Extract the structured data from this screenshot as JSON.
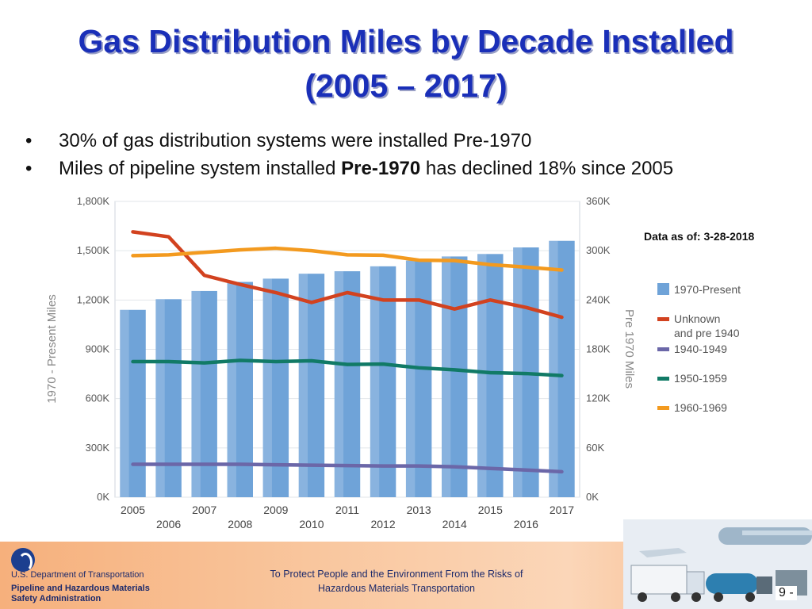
{
  "slide": {
    "title_line1": "Gas Distribution Miles by Decade Installed",
    "title_line2": "(2005 – 2017)",
    "bullets": [
      {
        "text": "30% of gas distribution systems were installed Pre-1970"
      },
      {
        "pre": "Miles of pipeline system installed ",
        "bold": "Pre-1970",
        "post": " has declined 18% since 2005"
      }
    ],
    "data_as_of": "Data as of: 3-28-2018"
  },
  "chart_data": {
    "type": "bar",
    "x": [
      "2005",
      "2006",
      "2007",
      "2008",
      "2009",
      "2010",
      "2011",
      "2012",
      "2013",
      "2014",
      "2015",
      "2016",
      "2017"
    ],
    "ylabel": "1970 - Present Miles",
    "y2label": "Pre 1970 Miles",
    "ylim": [
      0,
      1800000
    ],
    "y2lim": [
      0,
      360000
    ],
    "yticks": [
      "0K",
      "300K",
      "600K",
      "900K",
      "1,200K",
      "1,500K",
      "1,800K"
    ],
    "y2ticks": [
      "0K",
      "60K",
      "120K",
      "180K",
      "240K",
      "300K",
      "360K"
    ],
    "grid": true,
    "legend_position": "right",
    "series": [
      {
        "name": "1970-Present",
        "type": "bar",
        "axis": "left",
        "color": "#6fa3d8",
        "values": [
          1140000,
          1205000,
          1255000,
          1310000,
          1330000,
          1360000,
          1375000,
          1405000,
          1440000,
          1465000,
          1480000,
          1520000,
          1560000
        ]
      },
      {
        "name": "Unknown and pre 1940",
        "type": "line",
        "axis": "right",
        "color": "#d2421f",
        "values": [
          323000,
          317000,
          270000,
          259000,
          249000,
          237000,
          249000,
          240000,
          240000,
          229000,
          240000,
          231000,
          219000
        ]
      },
      {
        "name": "1940-1949",
        "type": "line",
        "axis": "right",
        "color": "#6b67a8",
        "values": [
          40000,
          40000,
          40000,
          40000,
          39500,
          39000,
          38500,
          38000,
          38000,
          37000,
          35000,
          33000,
          31000
        ]
      },
      {
        "name": "1950-1959",
        "type": "line",
        "axis": "right",
        "color": "#117a66",
        "values": [
          165000,
          165000,
          163500,
          166500,
          165000,
          166000,
          161500,
          162000,
          157500,
          155000,
          151500,
          150500,
          148000
        ]
      },
      {
        "name": "1960-1969",
        "type": "line",
        "axis": "right",
        "color": "#f39a1f",
        "values": [
          294000,
          295000,
          298000,
          301000,
          303000,
          300000,
          295000,
          294500,
          288500,
          288000,
          283000,
          280000,
          276500
        ]
      }
    ],
    "legend": [
      {
        "line1": "1970-Present",
        "line2": ""
      },
      {
        "line1": "Unknown",
        "line2": "and pre 1940"
      },
      {
        "line1": "1940-1949",
        "line2": ""
      },
      {
        "line1": "1950-1959",
        "line2": ""
      },
      {
        "line1": "1960-1969",
        "line2": ""
      }
    ]
  },
  "footer": {
    "dept": "U.S. Department of Transportation",
    "agency_line1": "Pipeline and Hazardous Materials",
    "agency_line2": "Safety Administration",
    "slogan_line1": "To Protect People and the Environment From the Risks of",
    "slogan_line2": "Hazardous Materials Transportation",
    "page": "9 -"
  }
}
